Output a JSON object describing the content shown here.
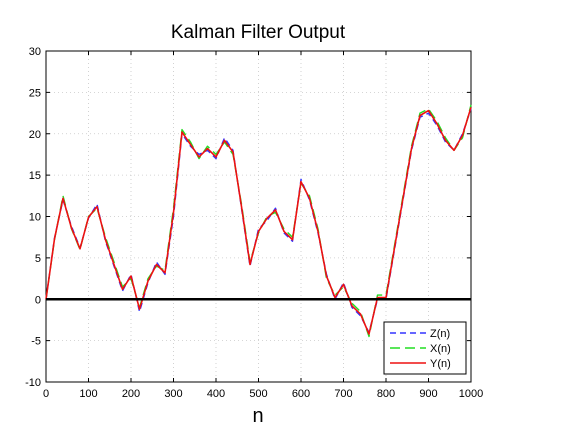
{
  "chart_data": {
    "type": "line",
    "title": "Kalman Filter Output",
    "xlabel": "n",
    "ylabel": "",
    "xlim": [
      0,
      1000
    ],
    "ylim": [
      -10,
      30
    ],
    "xticks": [
      0,
      100,
      200,
      300,
      400,
      500,
      600,
      700,
      800,
      900,
      1000
    ],
    "yticks": [
      -10,
      -5,
      0,
      5,
      10,
      15,
      20,
      25,
      30
    ],
    "grid": true,
    "legend_position": "bottom-right",
    "reference_line": {
      "y": 0,
      "color": "#000000"
    },
    "x": [
      0,
      20,
      40,
      60,
      80,
      100,
      120,
      140,
      160,
      180,
      200,
      220,
      240,
      260,
      280,
      300,
      320,
      340,
      360,
      380,
      400,
      420,
      440,
      460,
      480,
      500,
      520,
      540,
      560,
      580,
      600,
      620,
      640,
      660,
      680,
      700,
      720,
      740,
      760,
      780,
      800,
      820,
      840,
      860,
      880,
      900,
      920,
      940,
      960,
      980,
      1000
    ],
    "series": [
      {
        "name": "Z(n)",
        "color": "#3333ff",
        "dash": "6,4",
        "values": [
          0.0,
          7.4,
          12.0,
          8.8,
          6.2,
          9.8,
          11.5,
          7.0,
          4.0,
          1.0,
          3.0,
          -1.5,
          2.0,
          4.5,
          3.0,
          10.0,
          20.0,
          18.5,
          17.5,
          18.0,
          17.0,
          19.5,
          18.0,
          11.0,
          4.0,
          8.5,
          9.5,
          11.0,
          8.0,
          7.0,
          14.5,
          12.0,
          8.0,
          3.0,
          0.0,
          2.0,
          -1.0,
          -2.0,
          -4.0,
          0.0,
          0.0,
          6.0,
          12.0,
          18.0,
          22.0,
          22.5,
          21.0,
          19.0,
          18.0,
          20.0,
          23.0
        ]
      },
      {
        "name": "X(n)",
        "color": "#22dd22",
        "dash": "10,5",
        "values": [
          0.0,
          7.2,
          12.5,
          8.5,
          6.0,
          10.0,
          11.0,
          7.5,
          4.5,
          1.5,
          2.5,
          -1.0,
          2.5,
          4.0,
          3.5,
          11.0,
          20.5,
          19.0,
          17.0,
          18.5,
          17.5,
          19.0,
          17.5,
          11.5,
          4.5,
          8.0,
          10.0,
          10.5,
          8.5,
          7.5,
          14.0,
          12.5,
          8.5,
          2.5,
          0.5,
          1.5,
          -0.5,
          -1.5,
          -4.5,
          0.5,
          0.5,
          6.5,
          12.5,
          18.5,
          22.5,
          23.0,
          21.5,
          19.5,
          18.0,
          19.5,
          23.5
        ]
      },
      {
        "name": "Y(n)",
        "color": "#ee1111",
        "dash": "",
        "values": [
          0.0,
          7.3,
          12.2,
          8.6,
          6.1,
          9.9,
          11.2,
          7.2,
          4.2,
          1.2,
          2.8,
          -1.2,
          2.2,
          4.2,
          3.2,
          10.5,
          20.2,
          18.7,
          17.2,
          18.2,
          17.2,
          19.2,
          17.8,
          11.2,
          4.2,
          8.2,
          9.8,
          10.8,
          8.2,
          7.2,
          14.2,
          12.2,
          8.2,
          2.8,
          0.2,
          1.8,
          -0.8,
          -1.8,
          -4.2,
          0.2,
          0.2,
          6.2,
          12.2,
          18.2,
          22.2,
          22.8,
          21.2,
          19.2,
          18.0,
          19.8,
          23.2
        ]
      }
    ]
  }
}
